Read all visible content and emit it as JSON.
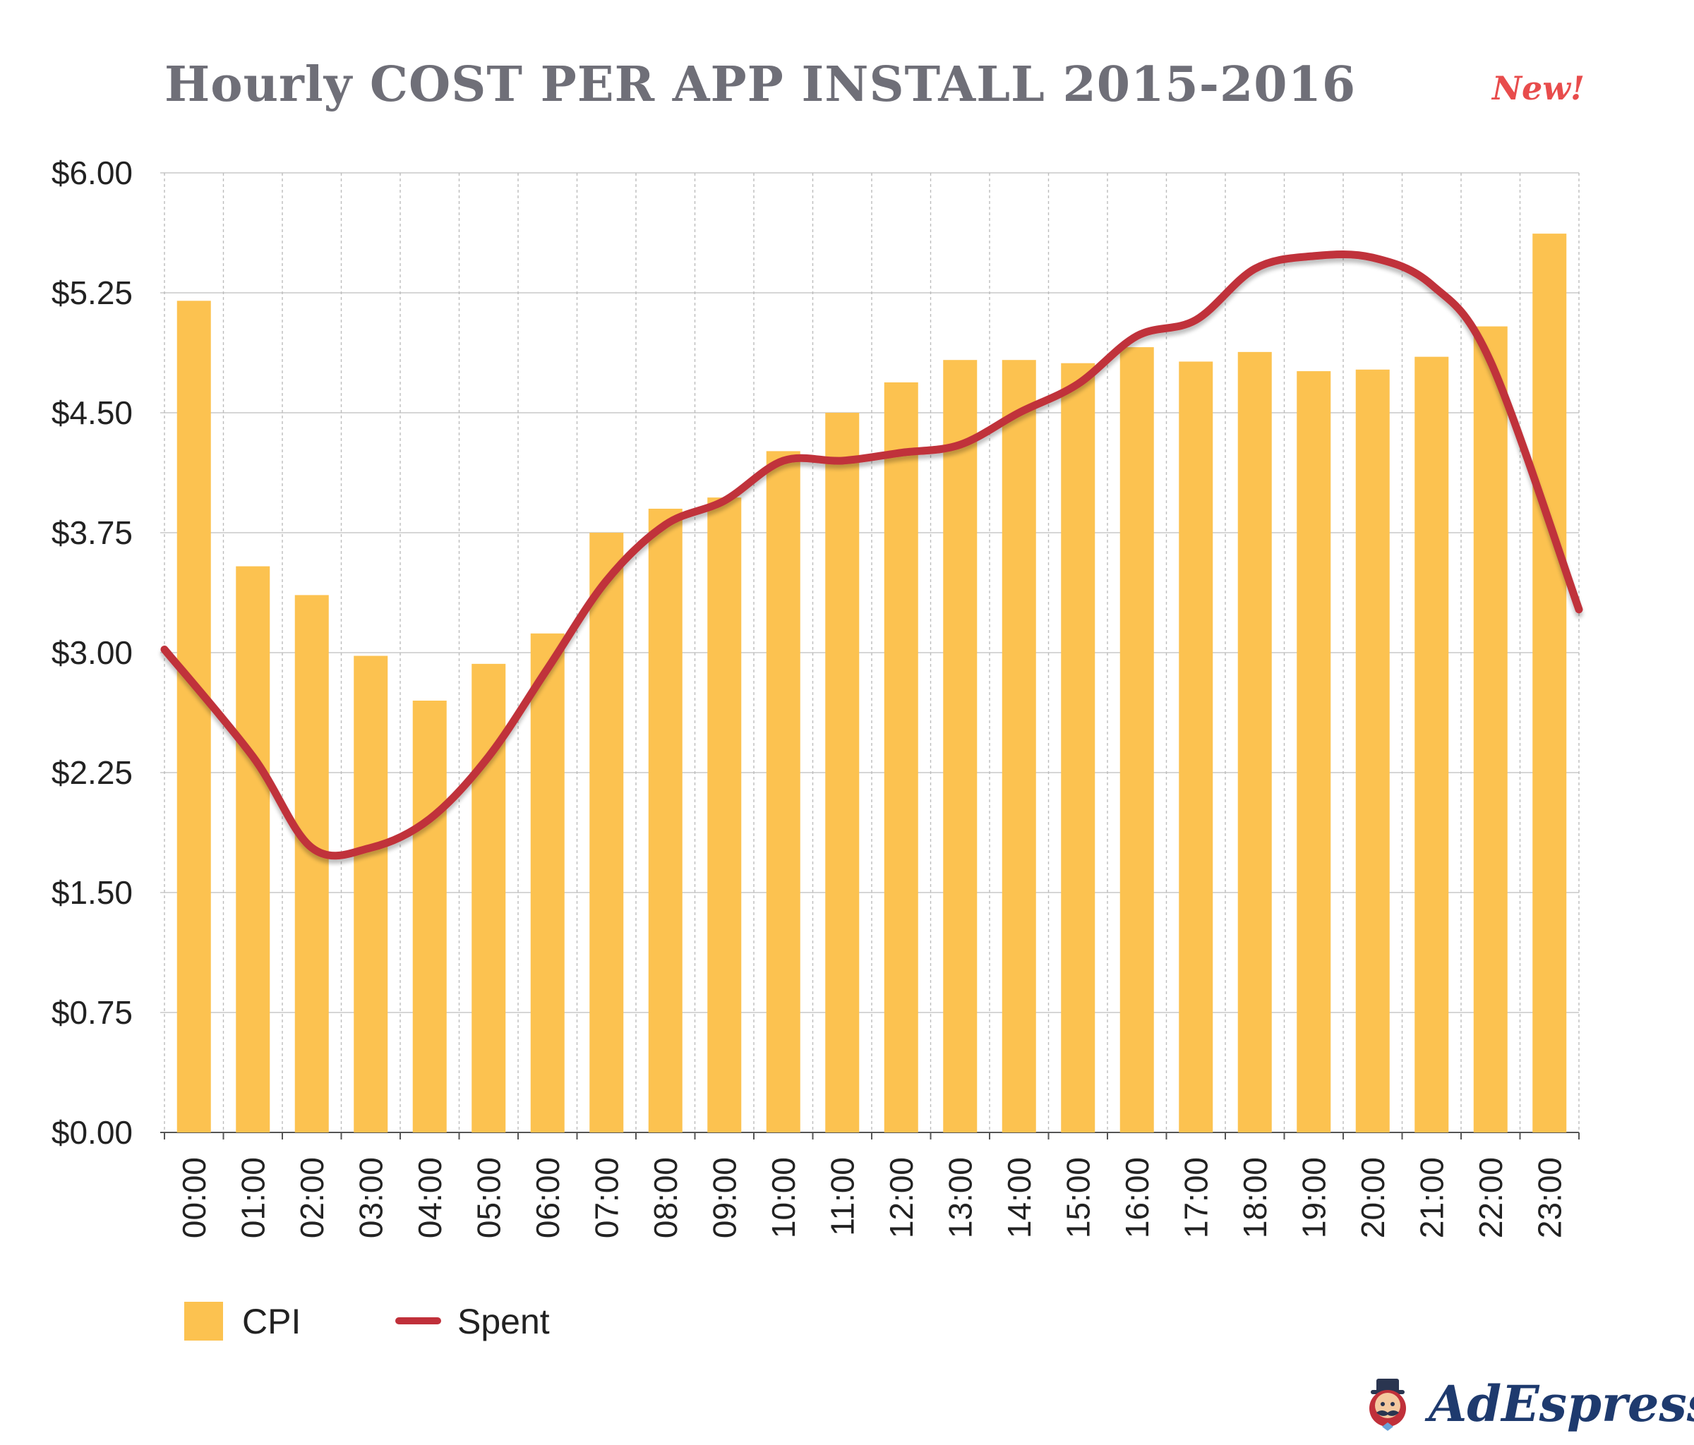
{
  "title": "Hourly COST PER APP INSTALL 2015-2016",
  "badge": "New!",
  "logo": {
    "text": "AdEspresso",
    "icon": "mascot-icon"
  },
  "colors": {
    "bar": "#fcc250",
    "line": "#c0303a",
    "title": "#6f6f78",
    "badge": "#e84c4c",
    "logo": "#1e3a6e"
  },
  "chart_data": {
    "type": "bar",
    "title": "Hourly COST PER APP INSTALL 2015-2016",
    "xlabel": "",
    "ylabel": "",
    "ylim": [
      0,
      6
    ],
    "y_ticks": [
      "$0.00",
      "$0.75",
      "$1.50",
      "$2.25",
      "$3.00",
      "$3.75",
      "$4.50",
      "$5.25",
      "$6.00"
    ],
    "grid": true,
    "legend_position": "bottom-left",
    "categories": [
      "00:00",
      "01:00",
      "02:00",
      "03:00",
      "04:00",
      "05:00",
      "06:00",
      "07:00",
      "08:00",
      "09:00",
      "10:00",
      "11:00",
      "12:00",
      "13:00",
      "14:00",
      "15:00",
      "16:00",
      "17:00",
      "18:00",
      "19:00",
      "20:00",
      "21:00",
      "22:00",
      "23:00"
    ],
    "series": [
      {
        "name": "CPI",
        "type": "bar",
        "values": [
          5.2,
          3.54,
          3.36,
          2.98,
          2.7,
          2.93,
          3.12,
          3.75,
          3.9,
          3.97,
          4.26,
          4.5,
          4.69,
          4.83,
          4.83,
          4.81,
          4.91,
          4.82,
          4.88,
          4.76,
          4.77,
          4.85,
          5.04,
          5.62
        ]
      },
      {
        "name": "Spent",
        "type": "line",
        "values": [
          3.02,
          2.35,
          1.78,
          1.78,
          1.96,
          2.35,
          2.9,
          3.45,
          3.8,
          3.95,
          4.2,
          4.2,
          4.25,
          4.3,
          4.5,
          4.68,
          4.98,
          5.08,
          5.4,
          5.48,
          5.47,
          5.3,
          4.82,
          3.27
        ]
      }
    ]
  }
}
